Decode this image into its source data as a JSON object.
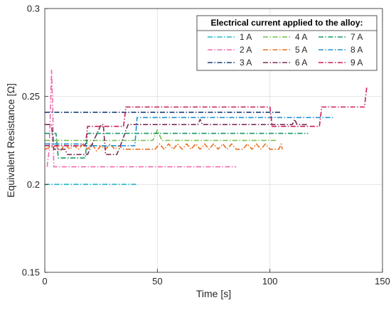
{
  "chart_data": {
    "type": "line",
    "title": "",
    "xlabel": "Time [s]",
    "ylabel": "Equivalent Resistance [Ω]",
    "xlim": [
      0,
      150
    ],
    "ylim": [
      0.15,
      0.3
    ],
    "xticks": [
      0,
      50,
      100,
      150
    ],
    "yticks": [
      0.15,
      0.2,
      0.25,
      0.3
    ],
    "grid": true,
    "legend": {
      "title": "Electrical current applied to the alloy:",
      "placement": "top-right",
      "columns": 3
    },
    "series": [
      {
        "name": "1 A",
        "color": "#1cb5c8",
        "points": [
          [
            0,
            0.2
          ],
          [
            41,
            0.2
          ]
        ]
      },
      {
        "name": "2 A",
        "color": "#f06ab0",
        "points": [
          [
            1,
            0.21
          ],
          [
            2,
            0.22
          ],
          [
            3,
            0.265
          ],
          [
            3.5,
            0.245
          ],
          [
            4,
            0.21
          ],
          [
            85,
            0.21
          ]
        ]
      },
      {
        "name": "3 A",
        "color": "#1a3f78",
        "points": [
          [
            0,
            0.241
          ],
          [
            105,
            0.241
          ]
        ]
      },
      {
        "name": "4 A",
        "color": "#6cc04a",
        "points": [
          [
            0,
            0.225
          ],
          [
            48,
            0.225
          ],
          [
            50,
            0.231
          ],
          [
            52,
            0.225
          ],
          [
            103,
            0.225
          ]
        ]
      },
      {
        "name": "5 A",
        "color": "#e8701e",
        "points": [
          [
            0,
            0.22
          ],
          [
            5,
            0.222
          ],
          [
            7,
            0.219
          ],
          [
            9,
            0.223
          ],
          [
            11,
            0.22
          ],
          [
            13,
            0.222
          ],
          [
            15,
            0.22
          ],
          [
            17,
            0.223
          ],
          [
            19,
            0.22
          ],
          [
            21,
            0.223
          ],
          [
            23,
            0.219
          ],
          [
            25,
            0.222
          ],
          [
            27,
            0.22
          ],
          [
            29,
            0.223
          ],
          [
            31,
            0.22
          ],
          [
            33,
            0.222
          ],
          [
            35,
            0.22
          ],
          [
            37,
            0.22
          ],
          [
            49,
            0.22
          ],
          [
            51,
            0.223
          ],
          [
            53,
            0.22
          ],
          [
            55,
            0.223
          ],
          [
            57,
            0.22
          ],
          [
            59,
            0.223
          ],
          [
            61,
            0.22
          ],
          [
            63,
            0.223
          ],
          [
            65,
            0.22
          ],
          [
            67,
            0.223
          ],
          [
            69,
            0.22
          ],
          [
            71,
            0.223
          ],
          [
            73,
            0.22
          ],
          [
            75,
            0.223
          ],
          [
            77,
            0.22
          ],
          [
            79,
            0.223
          ],
          [
            81,
            0.22
          ],
          [
            83,
            0.223
          ],
          [
            85,
            0.22
          ],
          [
            88,
            0.22
          ],
          [
            90,
            0.223
          ],
          [
            92,
            0.22
          ],
          [
            94,
            0.223
          ],
          [
            96,
            0.22
          ],
          [
            98,
            0.223
          ],
          [
            100,
            0.22
          ],
          [
            104,
            0.22
          ],
          [
            105,
            0.223
          ],
          [
            105.5,
            0.22
          ]
        ]
      },
      {
        "name": "6 A",
        "color": "#7c2e5a",
        "points": [
          [
            0,
            0.234
          ],
          [
            3,
            0.234
          ],
          [
            4,
            0.22
          ],
          [
            9,
            0.22
          ],
          [
            10,
            0.217
          ],
          [
            19,
            0.217
          ],
          [
            20,
            0.22
          ],
          [
            25,
            0.234
          ],
          [
            26,
            0.234
          ],
          [
            27,
            0.217
          ],
          [
            32,
            0.217
          ],
          [
            33,
            0.22
          ],
          [
            37,
            0.234
          ],
          [
            68,
            0.234
          ],
          [
            69,
            0.237
          ],
          [
            70,
            0.234
          ],
          [
            110,
            0.234
          ],
          [
            111,
            0.237
          ],
          [
            112,
            0.234
          ],
          [
            117,
            0.234
          ]
        ]
      },
      {
        "name": "7 A",
        "color": "#139a60",
        "points": [
          [
            0,
            0.229
          ],
          [
            5,
            0.229
          ],
          [
            6,
            0.215
          ],
          [
            18,
            0.215
          ],
          [
            19,
            0.229
          ],
          [
            117,
            0.229
          ]
        ]
      },
      {
        "name": "8 A",
        "color": "#1e93d6",
        "points": [
          [
            0,
            0.223
          ],
          [
            17,
            0.223
          ],
          [
            18,
            0.222
          ],
          [
            40,
            0.222
          ],
          [
            41,
            0.238
          ],
          [
            128,
            0.238
          ]
        ]
      },
      {
        "name": "9 A",
        "color": "#c91c55",
        "points": [
          [
            0,
            0.222
          ],
          [
            18,
            0.222
          ],
          [
            19,
            0.233
          ],
          [
            35,
            0.233
          ],
          [
            36,
            0.244
          ],
          [
            100,
            0.244
          ],
          [
            101,
            0.233
          ],
          [
            122,
            0.233
          ],
          [
            123,
            0.244
          ],
          [
            142,
            0.244
          ],
          [
            143,
            0.255
          ]
        ]
      }
    ]
  }
}
